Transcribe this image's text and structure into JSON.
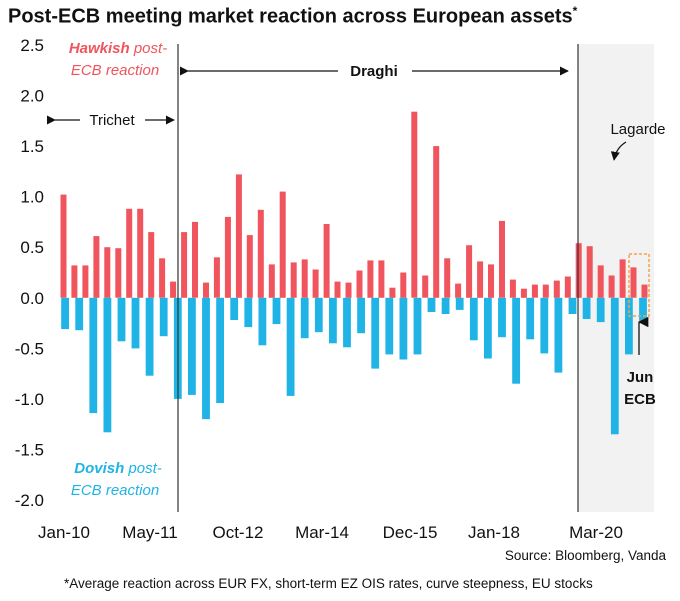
{
  "title": "Post-ECB meeting market reaction across European assets",
  "title_mark": "*",
  "source": "Source: Bloomberg, Vanda",
  "footnote": "*Average reaction across EUR FX, short-term EZ OIS rates, curve steepness, EU stocks",
  "colors": {
    "hawkish": "#f0545d",
    "dovish": "#1fb3e6",
    "shade": "#f2f2f2",
    "highlight": "#f5a24a"
  },
  "chart_data": {
    "type": "bar",
    "ylim": [
      -2.0,
      2.5
    ],
    "yticks": [
      "2.5",
      "2.0",
      "1.5",
      "1.0",
      "0.5",
      "0.0",
      "-0.5",
      "-1.0",
      "-1.5",
      "-2.0"
    ],
    "xticks": [
      "Jan-10",
      "May-11",
      "Oct-12",
      "Mar-14",
      "Dec-15",
      "Jan-18",
      "Mar-20"
    ],
    "grid": false,
    "series": [
      {
        "name": "Hawkish",
        "values": [
          1.02,
          0.32,
          0.32,
          0.61,
          0.5,
          0.49,
          0.88,
          0.88,
          0.65,
          0.39,
          0.16,
          0.65,
          0.75,
          0.15,
          0.4,
          0.8,
          1.22,
          0.62,
          0.87,
          0.33,
          1.05,
          0.35,
          0.38,
          0.28,
          0.73,
          0.16,
          0.15,
          0.27,
          0.37,
          0.37,
          0.1,
          0.25,
          1.84,
          0.22,
          1.5,
          0.39,
          0.14,
          0.52,
          0.36,
          0.33,
          0.76,
          0.18,
          0.09,
          0.13,
          0.13,
          0.17,
          0.21,
          0.54,
          0.51,
          0.32,
          0.22,
          0.38,
          0.3,
          0.13
        ]
      },
      {
        "name": "Dovish",
        "values": [
          -0.31,
          -0.32,
          -1.14,
          -1.33,
          -0.43,
          -0.5,
          -0.77,
          -0.38,
          -1.0,
          -0.96,
          -1.2,
          -1.04,
          -0.22,
          -0.29,
          -0.47,
          -0.26,
          -0.97,
          -0.4,
          -0.34,
          -0.45,
          -0.49,
          -0.35,
          -0.7,
          -0.56,
          -0.61,
          -0.56,
          -0.14,
          -0.16,
          -0.12,
          -0.42,
          -0.6,
          -0.39,
          -0.85,
          -0.41,
          -0.55,
          -0.74,
          -0.16,
          -0.21,
          -0.24,
          -1.35,
          -0.56,
          -0.23
        ]
      }
    ],
    "annotations": {
      "hawkish_label": {
        "word": "Hawkish",
        "rest1": " post-",
        "line2": "ECB reaction"
      },
      "dovish_label": {
        "word": "Dovish",
        "rest1": " post-",
        "line2": "ECB reaction"
      },
      "trichet": "Trichet",
      "draghi": "Draghi",
      "lagarde": "Lagarde",
      "jun_ecb": [
        "Jun",
        "ECB"
      ]
    }
  }
}
